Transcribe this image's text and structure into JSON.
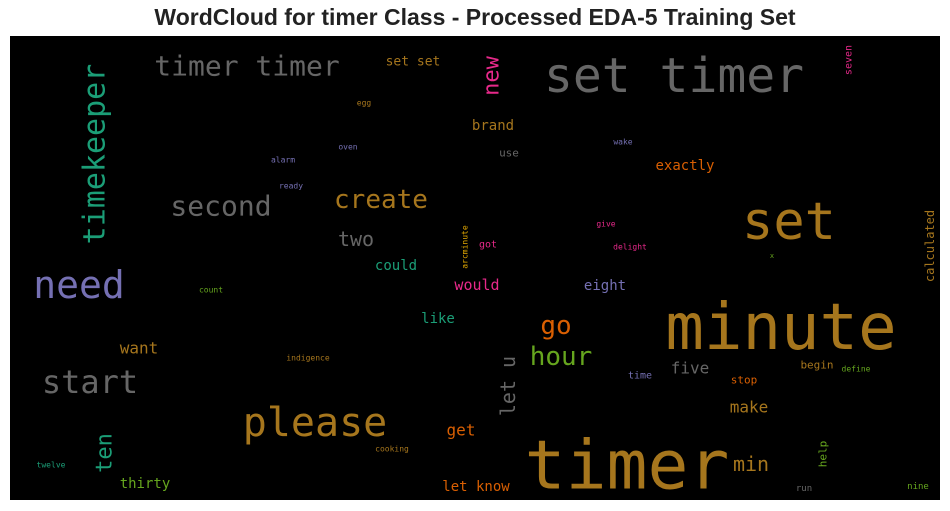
{
  "chart_data": {
    "type": "wordcloud",
    "title": "WordCloud for timer Class - Processed EDA-5 Training Set",
    "background": "#000000",
    "words": [
      {
        "text": "timer",
        "weight": 100,
        "color": "#a6761d",
        "orientation": "horizontal"
      },
      {
        "text": "minute",
        "weight": 96,
        "color": "#a6761d",
        "orientation": "horizontal"
      },
      {
        "text": "set timer",
        "weight": 70,
        "color": "#666666",
        "orientation": "horizontal"
      },
      {
        "text": "set",
        "weight": 78,
        "color": "#a6761d",
        "orientation": "horizontal"
      },
      {
        "text": "please",
        "weight": 58,
        "color": "#a6761d",
        "orientation": "horizontal"
      },
      {
        "text": "need",
        "weight": 54,
        "color": "#7570b3",
        "orientation": "horizontal"
      },
      {
        "text": "start",
        "weight": 47,
        "color": "#666666",
        "orientation": "horizontal"
      },
      {
        "text": "timekeeper",
        "weight": 44,
        "color": "#1b9e77",
        "orientation": "vertical"
      },
      {
        "text": "timer timer",
        "weight": 40,
        "color": "#666666",
        "orientation": "horizontal"
      },
      {
        "text": "second",
        "weight": 40,
        "color": "#666666",
        "orientation": "horizontal"
      },
      {
        "text": "hour",
        "weight": 36,
        "color": "#66a61e",
        "orientation": "horizontal"
      },
      {
        "text": "create",
        "weight": 37,
        "color": "#a6761d",
        "orientation": "horizontal"
      },
      {
        "text": "go",
        "weight": 35,
        "color": "#d95f02",
        "orientation": "horizontal"
      },
      {
        "text": "ten",
        "weight": 32,
        "color": "#1b9e77",
        "orientation": "vertical"
      },
      {
        "text": "new",
        "weight": 31,
        "color": "#e7298a",
        "orientation": "vertical"
      },
      {
        "text": "let u",
        "weight": 27,
        "color": "#666666",
        "orientation": "vertical"
      },
      {
        "text": "two",
        "weight": 26,
        "color": "#666666",
        "orientation": "horizontal"
      },
      {
        "text": "min",
        "weight": 26,
        "color": "#a6761d",
        "orientation": "horizontal"
      },
      {
        "text": "want",
        "weight": 21,
        "color": "#a6761d",
        "orientation": "horizontal"
      },
      {
        "text": "get",
        "weight": 21,
        "color": "#d95f02",
        "orientation": "horizontal"
      },
      {
        "text": "make",
        "weight": 19,
        "color": "#a6761d",
        "orientation": "horizontal"
      },
      {
        "text": "five",
        "weight": 19,
        "color": "#666666",
        "orientation": "horizontal"
      },
      {
        "text": "would",
        "weight": 18,
        "color": "#e7298a",
        "orientation": "horizontal"
      },
      {
        "text": "exactly",
        "weight": 17,
        "color": "#d95f02",
        "orientation": "horizontal"
      },
      {
        "text": "eight",
        "weight": 17,
        "color": "#7570b3",
        "orientation": "horizontal"
      },
      {
        "text": "like",
        "weight": 16,
        "color": "#1b9e77",
        "orientation": "horizontal"
      },
      {
        "text": "brand",
        "weight": 16,
        "color": "#a6761d",
        "orientation": "horizontal"
      },
      {
        "text": "thirty",
        "weight": 16,
        "color": "#66a61e",
        "orientation": "horizontal"
      },
      {
        "text": "let know",
        "weight": 16,
        "color": "#d95f02",
        "orientation": "horizontal"
      },
      {
        "text": "could",
        "weight": 15,
        "color": "#1b9e77",
        "orientation": "horizontal"
      },
      {
        "text": "set set",
        "weight": 14,
        "color": "#a6761d",
        "orientation": "horizontal"
      },
      {
        "text": "stop",
        "weight": 12,
        "color": "#d95f02",
        "orientation": "horizontal"
      },
      {
        "text": "begin",
        "weight": 12,
        "color": "#a6761d",
        "orientation": "horizontal"
      },
      {
        "text": "use",
        "weight": 12,
        "color": "#666666",
        "orientation": "horizontal"
      },
      {
        "text": "time",
        "weight": 11,
        "color": "#7570b3",
        "orientation": "horizontal"
      },
      {
        "text": "got",
        "weight": 11,
        "color": "#e7298a",
        "orientation": "horizontal"
      },
      {
        "text": "calculated",
        "weight": 12,
        "color": "#a6761d",
        "orientation": "vertical"
      },
      {
        "text": "help",
        "weight": 11,
        "color": "#66a61e",
        "orientation": "vertical"
      },
      {
        "text": "seven",
        "weight": 10,
        "color": "#e7298a",
        "orientation": "vertical"
      },
      {
        "text": "run",
        "weight": 9,
        "color": "#666666",
        "orientation": "horizontal"
      },
      {
        "text": "nine",
        "weight": 9,
        "color": "#66a61e",
        "orientation": "horizontal"
      },
      {
        "text": "wake",
        "weight": 9,
        "color": "#7570b3",
        "orientation": "horizontal"
      },
      {
        "text": "delight",
        "weight": 8,
        "color": "#e7298a",
        "orientation": "horizontal"
      },
      {
        "text": "give",
        "weight": 8,
        "color": "#e7298a",
        "orientation": "horizontal"
      },
      {
        "text": "oven",
        "weight": 8,
        "color": "#7570b3",
        "orientation": "horizontal"
      },
      {
        "text": "alarm",
        "weight": 8,
        "color": "#7570b3",
        "orientation": "horizontal"
      },
      {
        "text": "ready",
        "weight": 8,
        "color": "#7570b3",
        "orientation": "horizontal"
      },
      {
        "text": "egg",
        "weight": 8,
        "color": "#a6761d",
        "orientation": "horizontal"
      },
      {
        "text": "count",
        "weight": 8,
        "color": "#66a61e",
        "orientation": "horizontal"
      },
      {
        "text": "indigence",
        "weight": 8,
        "color": "#a6761d",
        "orientation": "horizontal"
      },
      {
        "text": "cooking",
        "weight": 8,
        "color": "#a6761d",
        "orientation": "horizontal"
      },
      {
        "text": "twelve",
        "weight": 8,
        "color": "#1b9e77",
        "orientation": "horizontal"
      },
      {
        "text": "define",
        "weight": 8,
        "color": "#66a61e",
        "orientation": "horizontal"
      },
      {
        "text": "arcminute",
        "weight": 8,
        "color": "#e6ab02",
        "orientation": "vertical"
      },
      {
        "text": "x",
        "weight": 7,
        "color": "#66a61e",
        "orientation": "horizontal"
      }
    ]
  }
}
